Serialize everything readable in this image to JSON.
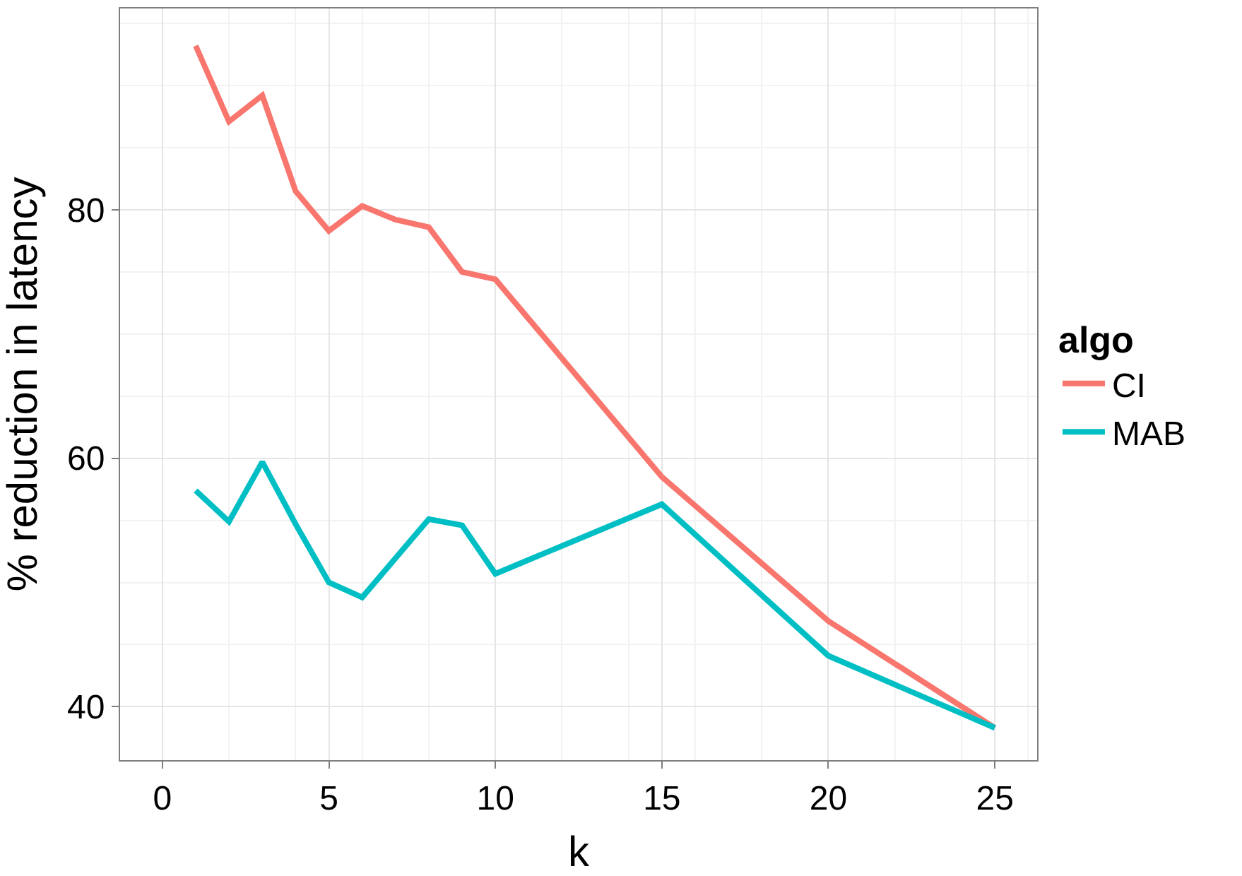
{
  "chart_data": {
    "type": "line",
    "xlabel": "k",
    "ylabel": "% reduction in latency",
    "legend_title": "algo",
    "legend": "right",
    "grid": true,
    "xlim": [
      -1.27,
      26.27
    ],
    "ylim": [
      35.7,
      96.2
    ],
    "xticks": [
      0,
      5,
      10,
      15,
      20,
      25
    ],
    "yticks": [
      40,
      60,
      80
    ],
    "series": [
      {
        "name": "CI",
        "color": "#f8766d",
        "x": [
          1,
          2,
          3,
          4,
          5,
          6,
          7,
          8,
          9,
          10,
          15,
          20,
          25
        ],
        "values": [
          93.2,
          87.1,
          89.2,
          81.5,
          78.3,
          80.3,
          79.2,
          78.6,
          75.0,
          74.4,
          58.5,
          46.9,
          38.3
        ]
      },
      {
        "name": "MAB",
        "color": "#00bfc4",
        "x": [
          1,
          2,
          3,
          4,
          5,
          6,
          8,
          9,
          10,
          15,
          20,
          25
        ],
        "values": [
          57.4,
          54.9,
          59.7,
          54.7,
          50.0,
          48.8,
          55.1,
          54.6,
          50.7,
          56.3,
          44.1,
          38.3
        ]
      }
    ]
  }
}
